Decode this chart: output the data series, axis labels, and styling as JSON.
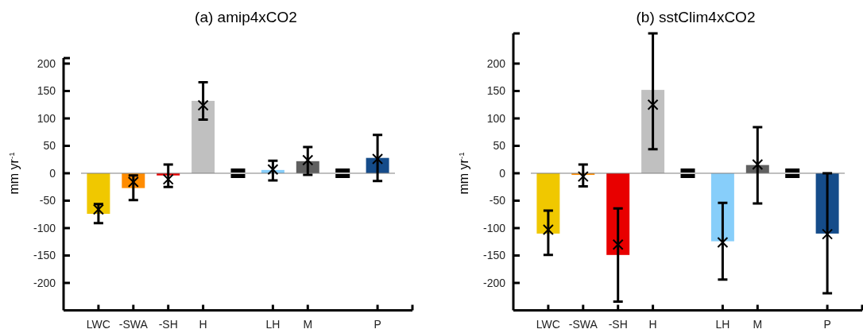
{
  "chart_data": [
    {
      "type": "bar",
      "title": "(a) amip4xCO2",
      "ylabel": "mm yr$^{-1}$",
      "categories": [
        "LWC",
        "-SWA",
        "-SH",
        "H",
        null,
        "LH",
        "M",
        null,
        "P"
      ],
      "ylim": [
        -250,
        210
      ],
      "yticks": [
        -200,
        -150,
        -100,
        -50,
        0,
        50,
        100,
        150,
        200
      ],
      "ref_lines": [
        {
          "axis": "y",
          "value": 0,
          "color": "#808080"
        }
      ],
      "series": [
        {
          "type": "bar",
          "colors": [
            "#f0c800",
            "#ff8c00",
            "#e80000",
            "#c0c0c0",
            null,
            "#87cefa",
            "#606060",
            null,
            "#154c8a"
          ],
          "values": [
            -74,
            -27,
            -4,
            132,
            null,
            6,
            22,
            null,
            28
          ]
        },
        {
          "type": "scatter",
          "color": "#000000",
          "marker": "cross",
          "values": [
            -66,
            -16,
            -11,
            124,
            null,
            7,
            24,
            null,
            26
          ],
          "errors": [
            [
              -91,
              -56
            ],
            [
              -49,
              -4
            ],
            [
              -25,
              16
            ],
            [
              98,
              166
            ],
            null,
            [
              -13,
              23
            ],
            [
              -3,
              48
            ],
            null,
            [
              -14,
              70
            ]
          ]
        }
      ]
    },
    {
      "type": "bar",
      "title": "(b) sstClim4xCO2",
      "ylabel": "mm yr$^{-1}$",
      "categories": [
        "LWC",
        "-SWA",
        "-SH",
        "H",
        null,
        "LH",
        "M",
        null,
        "P"
      ],
      "ylim": [
        -250,
        255
      ],
      "yticks": [
        -200,
        -150,
        -100,
        -50,
        0,
        50,
        100,
        150,
        200
      ],
      "ref_lines": [
        {
          "axis": "y",
          "value": 0,
          "color": "#808080"
        }
      ],
      "series": [
        {
          "type": "bar",
          "colors": [
            "#f0c800",
            "#ff8c00",
            "#e80000",
            "#c0c0c0",
            null,
            "#87cefa",
            "#606060",
            null,
            "#154c8a"
          ],
          "values": [
            -110,
            -3,
            -149,
            152,
            null,
            -124,
            15,
            null,
            -110
          ]
        },
        {
          "type": "scatter",
          "color": "#000000",
          "marker": "cross",
          "values": [
            -103,
            -6,
            -130,
            125,
            null,
            -126,
            16,
            null,
            -111
          ],
          "errors": [
            [
              -149,
              -68
            ],
            [
              -24,
              16
            ],
            [
              -234,
              -64
            ],
            [
              44,
              255
            ],
            null,
            [
              -194,
              -54
            ],
            [
              -55,
              84
            ],
            null,
            [
              -219,
              0
            ]
          ]
        }
      ]
    }
  ]
}
